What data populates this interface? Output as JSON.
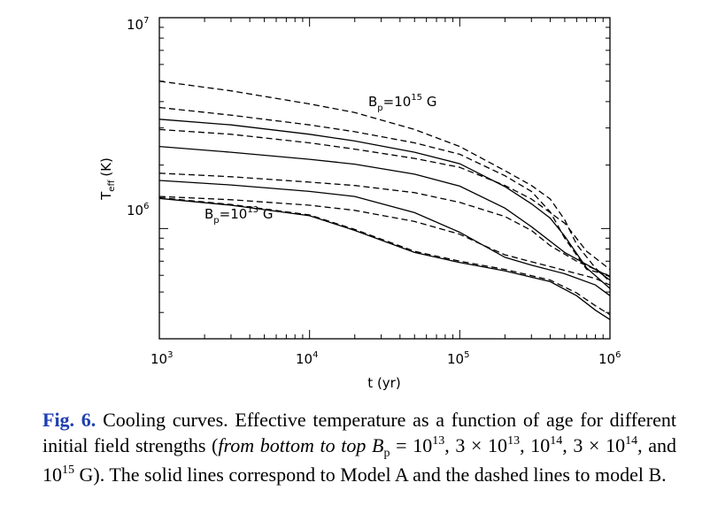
{
  "chart_data": {
    "type": "line",
    "xlabel": "t (yr)",
    "ylabel": "T_eff (K)",
    "xscale": "log",
    "yscale": "log",
    "xlim": [
      1000,
      1000000
    ],
    "ylim": [
      300000,
      10000000
    ],
    "x_ticks": [
      {
        "value": 1000,
        "base": "10",
        "exp": "3"
      },
      {
        "value": 10000,
        "base": "10",
        "exp": "4"
      },
      {
        "value": 100000,
        "base": "10",
        "exp": "5"
      },
      {
        "value": 1000000,
        "base": "10",
        "exp": "6"
      }
    ],
    "y_ticks": [
      {
        "value": 1000000,
        "base": "10",
        "exp": "6"
      },
      {
        "value": 10000000,
        "base": "10",
        "exp": "7"
      }
    ],
    "annotations": [
      {
        "text_prefix": "B",
        "text_sub": "p",
        "text_mid": "=10",
        "text_sup": "15",
        "text_suffix": " G",
        "label": "Bp=10^15 G",
        "x": 20000,
        "y": 3550000
      },
      {
        "text_prefix": "B",
        "text_sub": "p",
        "text_mid": "=10",
        "text_sup": "13",
        "text_suffix": " G",
        "label": "Bp=10^13 G",
        "x": 1750000,
        "y": 940000
      }
    ],
    "series": [
      {
        "name": "Model A, Bp=1e13 G",
        "model": "A",
        "style": "solid",
        "x": [
          1000,
          3000,
          10000,
          20000,
          50000,
          100000,
          200000,
          400000,
          600000,
          800000,
          1000000
        ],
        "y": [
          1390000,
          1290000,
          1150000,
          980000,
          770000,
          690000,
          630000,
          560000,
          480000,
          410000,
          370000
        ]
      },
      {
        "name": "Model B, Bp=1e13 G",
        "model": "B",
        "style": "dashed",
        "x": [
          1000,
          3000,
          10000,
          20000,
          50000,
          100000,
          200000,
          400000,
          600000,
          800000,
          1000000
        ],
        "y": [
          1400000,
          1300000,
          1160000,
          990000,
          780000,
          700000,
          640000,
          570000,
          495000,
          430000,
          390000
        ]
      },
      {
        "name": "Model A, Bp=3e13 G",
        "model": "A",
        "style": "solid",
        "x": [
          1000,
          3000,
          10000,
          20000,
          50000,
          100000,
          200000,
          300000,
          500000,
          800000,
          1000000
        ],
        "y": [
          1690000,
          1610000,
          1500000,
          1420000,
          1190000,
          960000,
          730000,
          670000,
          610000,
          540000,
          480000
        ]
      },
      {
        "name": "Model B, Bp=3e13 G",
        "model": "B",
        "style": "dashed",
        "x": [
          1000,
          3000,
          10000,
          20000,
          50000,
          100000,
          140000,
          200000,
          400000,
          800000,
          1000000
        ],
        "y": [
          1420000,
          1370000,
          1290000,
          1220000,
          1080000,
          940000,
          840000,
          750000,
          660000,
          580000,
          540000
        ]
      },
      {
        "name": "Model A, Bp=1e14 G",
        "model": "A",
        "style": "solid",
        "x": [
          1000,
          3000,
          10000,
          20000,
          50000,
          100000,
          200000,
          300000,
          500000,
          800000,
          1000000
        ],
        "y": [
          2450000,
          2300000,
          2130000,
          2020000,
          1810000,
          1590000,
          1250000,
          1020000,
          770000,
          640000,
          570000
        ]
      },
      {
        "name": "Model B, Bp=1e14 G",
        "model": "B",
        "style": "dashed",
        "x": [
          1000,
          3000,
          10000,
          20000,
          50000,
          100000,
          200000,
          300000,
          400000,
          600000,
          800000,
          1000000
        ],
        "y": [
          1830000,
          1760000,
          1660000,
          1600000,
          1480000,
          1330000,
          1140000,
          980000,
          830000,
          700000,
          640000,
          590000
        ]
      },
      {
        "name": "Model A, Bp=3e14 G",
        "model": "A",
        "style": "solid",
        "x": [
          1000,
          3000,
          10000,
          20000,
          50000,
          100000,
          200000,
          300000,
          400000,
          500000,
          700000,
          1000000
        ],
        "y": [
          3300000,
          3100000,
          2800000,
          2600000,
          2300000,
          2030000,
          1580000,
          1310000,
          1120000,
          920000,
          650000,
          520000
        ]
      },
      {
        "name": "Model B, Bp=3e14 G",
        "model": "B",
        "style": "dashed",
        "x": [
          1000,
          3000,
          10000,
          20000,
          50000,
          100000,
          200000,
          300000,
          500000,
          700000,
          1000000
        ],
        "y": [
          2950000,
          2800000,
          2550000,
          2380000,
          2150000,
          1950000,
          1600000,
          1380000,
          1060000,
          780000,
          640000
        ]
      },
      {
        "name": "Model B, Bp=1e15 G",
        "model": "B",
        "style": "dashed",
        "x": [
          1000,
          3000,
          10000,
          20000,
          50000,
          100000,
          200000,
          300000,
          400000,
          500000,
          600000,
          800000,
          1000000
        ],
        "y": [
          5000000,
          4500000,
          3900000,
          3550000,
          2950000,
          2450000,
          1880000,
          1600000,
          1380000,
          1100000,
          840000,
          650000,
          560000
        ]
      },
      {
        "name": "Model B, Bp=1e15 G (second)",
        "model": "B",
        "style": "dashed",
        "x": [
          1000,
          3000,
          10000,
          20000,
          50000,
          100000,
          200000,
          300000,
          400000,
          500000,
          700000,
          1000000
        ],
        "y": [
          3750000,
          3450000,
          3100000,
          2880000,
          2550000,
          2250000,
          1780000,
          1500000,
          1200000,
          900000,
          640000,
          600000
        ]
      }
    ]
  },
  "caption": {
    "fig_label": "Fig. 6.",
    "t1": " Cooling curves. Effective temperature as a function of age for different initial field strengths (",
    "t2": "from bottom to top B",
    "t2_sub": "p",
    "t3": " = 10",
    "s1": "13",
    "t4": ", 3 × 10",
    "s2": "13",
    "t5": ", 10",
    "s3": "14",
    "t6": ", 3 × 10",
    "s4": "14",
    "t7": ", and 10",
    "s5": "15",
    "t8": " G). The solid lines correspond to Model A and the dashed lines to model B."
  }
}
